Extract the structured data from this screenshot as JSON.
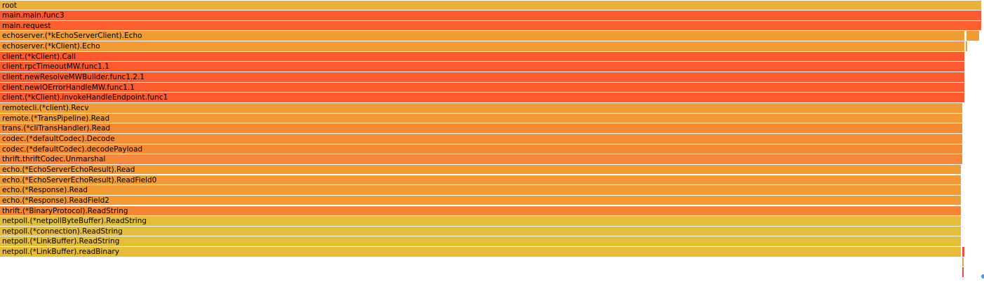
{
  "flamegraph": {
    "frames": [
      {
        "name": "root",
        "depth": 0,
        "start": 0,
        "fraction": 1.0,
        "color": "#eab03c"
      },
      {
        "name": "main.main.func3",
        "depth": 1,
        "start": 0,
        "fraction": 1.0,
        "color": "#fd5a2e"
      },
      {
        "name": "main.request",
        "depth": 2,
        "start": 0,
        "fraction": 1.0,
        "color": "#fd5f2e"
      },
      {
        "name": "echoserver.(*kEchoServerClient).Echo",
        "depth": 3,
        "start": 0,
        "fraction": 0.983,
        "color": "#f09b34"
      },
      {
        "name": "",
        "depth": 3,
        "start": 0.985,
        "fraction": 0.013,
        "color": "#f09b34"
      },
      {
        "name": "echoserver.(*kClient).Echo",
        "depth": 4,
        "start": 0,
        "fraction": 0.983,
        "color": "#f09b34"
      },
      {
        "name": "",
        "depth": 4,
        "start": 0.9845,
        "fraction": 0.0015,
        "color": "#f09b34"
      },
      {
        "name": "client.(*kClient).Call",
        "depth": 5,
        "start": 0,
        "fraction": 0.983,
        "color": "#fd5a2e"
      },
      {
        "name": "client.rpcTimeoutMW.func1.1",
        "depth": 6,
        "start": 0,
        "fraction": 0.983,
        "color": "#fd5a2e"
      },
      {
        "name": "client.newResolveMWBuilder.func1.2.1",
        "depth": 7,
        "start": 0,
        "fraction": 0.983,
        "color": "#fd5a2e"
      },
      {
        "name": "client.newIOErrorHandleMW.func1.1",
        "depth": 8,
        "start": 0,
        "fraction": 0.983,
        "color": "#fd5a2e"
      },
      {
        "name": "client.(*kClient).invokeHandleEndpoint.func1",
        "depth": 9,
        "start": 0,
        "fraction": 0.983,
        "color": "#fd5a2e"
      },
      {
        "name": "remotecli.(*client).Recv",
        "depth": 10,
        "start": 0,
        "fraction": 0.981,
        "color": "#f09b34"
      },
      {
        "name": "remote.(*TransPipeline).Read",
        "depth": 11,
        "start": 0,
        "fraction": 0.981,
        "color": "#f39a33"
      },
      {
        "name": "trans.(*cliTransHandler).Read",
        "depth": 12,
        "start": 0,
        "fraction": 0.981,
        "color": "#f58a35"
      },
      {
        "name": "codec.(*defaultCodec).Decode",
        "depth": 13,
        "start": 0,
        "fraction": 0.981,
        "color": "#f58c36"
      },
      {
        "name": "codec.(*defaultCodec).decodePayload",
        "depth": 14,
        "start": 0,
        "fraction": 0.981,
        "color": "#f58a35"
      },
      {
        "name": "thrift.thriftCodec.Unmarshal",
        "depth": 15,
        "start": 0,
        "fraction": 0.981,
        "color": "#f6863a"
      },
      {
        "name": "echo.(*EchoServerEchoResult).Read",
        "depth": 16,
        "start": 0,
        "fraction": 0.979,
        "color": "#f29a34"
      },
      {
        "name": "echo.(*EchoServerEchoResult).ReadField0",
        "depth": 17,
        "start": 0,
        "fraction": 0.979,
        "color": "#f29a34"
      },
      {
        "name": "echo.(*Response).Read",
        "depth": 18,
        "start": 0,
        "fraction": 0.979,
        "color": "#f29a34"
      },
      {
        "name": "echo.(*Response).ReadField2",
        "depth": 19,
        "start": 0,
        "fraction": 0.979,
        "color": "#f29a34"
      },
      {
        "name": "thrift.(*BinaryProtocol).ReadString",
        "depth": 20,
        "start": 0,
        "fraction": 0.979,
        "color": "#f88534"
      },
      {
        "name": "netpoll.(*netpollByteBuffer).ReadString",
        "depth": 21,
        "start": 0,
        "fraction": 0.979,
        "color": "#e5bd38"
      },
      {
        "name": "netpoll.(*connection).ReadString",
        "depth": 22,
        "start": 0,
        "fraction": 0.979,
        "color": "#e5bd38"
      },
      {
        "name": "netpoll.(*LinkBuffer).ReadString",
        "depth": 23,
        "start": 0,
        "fraction": 0.979,
        "color": "#e5bd38"
      },
      {
        "name": "netpoll.(*LinkBuffer).readBinary",
        "depth": 24,
        "start": 0,
        "fraction": 0.979,
        "color": "#e5bd38"
      },
      {
        "name": "",
        "depth": 24,
        "start": 0.981,
        "fraction": 0.0015,
        "color": "#f0504a"
      },
      {
        "name": "",
        "depth": 25,
        "start": 0.981,
        "fraction": 0.0012,
        "color": "#f0a040"
      },
      {
        "name": "",
        "depth": 26,
        "start": 0.981,
        "fraction": 0.0012,
        "color": "#f04c3c"
      }
    ]
  }
}
